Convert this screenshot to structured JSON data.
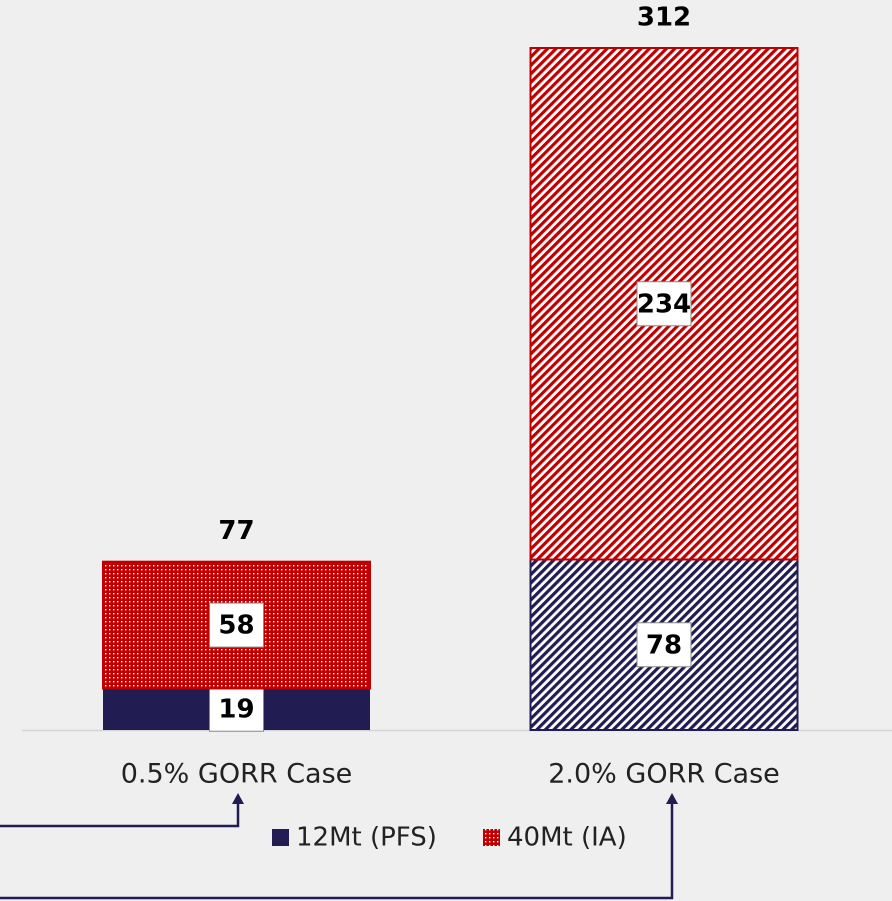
{
  "chart_data": {
    "type": "stacked_bar",
    "categories": [
      "0.5% GORR Case",
      "2.0% GORR Case"
    ],
    "series": [
      {
        "name": "12Mt (PFS)",
        "color": "#211c52",
        "values": [
          19,
          78
        ],
        "styles": [
          "solid",
          "hatch"
        ]
      },
      {
        "name": "40Mt (IA)",
        "color": "#c00000",
        "values": [
          58,
          234
        ],
        "styles": [
          "dots",
          "hatch"
        ]
      }
    ],
    "totals": [
      77,
      312
    ],
    "legend": "bottom"
  }
}
